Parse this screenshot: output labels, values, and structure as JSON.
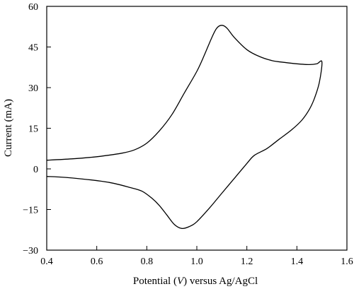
{
  "chart_data": {
    "type": "line",
    "title": "",
    "xlabel_parts": [
      "Potential (",
      "V",
      ") versus Ag/AgCl"
    ],
    "ylabel": "Current (mA)",
    "xlim": [
      0.4,
      1.6
    ],
    "ylim": [
      -30,
      60
    ],
    "xticks": [
      "0.4",
      "0.6",
      "0.8",
      "1.0",
      "1.2",
      "1.4",
      "1.6"
    ],
    "yticks": [
      "-30",
      "-15",
      "0",
      "15",
      "30",
      "45",
      "60"
    ],
    "grid": false,
    "legend": "none",
    "line_color": "#000000",
    "series": [
      {
        "points": [
          [
            0.4,
            3.2
          ],
          [
            0.5,
            3.7
          ],
          [
            0.6,
            4.5
          ],
          [
            0.7,
            5.8
          ],
          [
            0.75,
            7.0
          ],
          [
            0.8,
            9.5
          ],
          [
            0.85,
            14.0
          ],
          [
            0.9,
            20.0
          ],
          [
            0.95,
            28.0
          ],
          [
            1.0,
            36.0
          ],
          [
            1.03,
            42.0
          ],
          [
            1.06,
            48.5
          ],
          [
            1.08,
            52.0
          ],
          [
            1.1,
            53.0
          ],
          [
            1.12,
            52.0
          ],
          [
            1.15,
            48.5
          ],
          [
            1.2,
            44.0
          ],
          [
            1.25,
            41.5
          ],
          [
            1.3,
            40.0
          ],
          [
            1.35,
            39.3
          ],
          [
            1.4,
            38.8
          ],
          [
            1.45,
            38.5
          ],
          [
            1.48,
            38.8
          ],
          [
            1.5,
            39.5
          ],
          [
            1.49,
            32.0
          ],
          [
            1.47,
            26.0
          ],
          [
            1.45,
            22.0
          ],
          [
            1.42,
            18.0
          ],
          [
            1.38,
            14.5
          ],
          [
            1.33,
            11.0
          ],
          [
            1.28,
            7.5
          ],
          [
            1.23,
            5.0
          ],
          [
            1.2,
            2.0
          ],
          [
            1.15,
            -3.5
          ],
          [
            1.1,
            -9.0
          ],
          [
            1.05,
            -14.5
          ],
          [
            1.0,
            -19.5
          ],
          [
            0.97,
            -21.3
          ],
          [
            0.94,
            -22.0
          ],
          [
            0.91,
            -20.5
          ],
          [
            0.88,
            -17.0
          ],
          [
            0.85,
            -13.5
          ],
          [
            0.82,
            -10.8
          ],
          [
            0.78,
            -8.2
          ],
          [
            0.73,
            -6.8
          ],
          [
            0.65,
            -5.0
          ],
          [
            0.55,
            -3.8
          ],
          [
            0.45,
            -3.0
          ],
          [
            0.4,
            -2.8
          ]
        ]
      }
    ]
  }
}
